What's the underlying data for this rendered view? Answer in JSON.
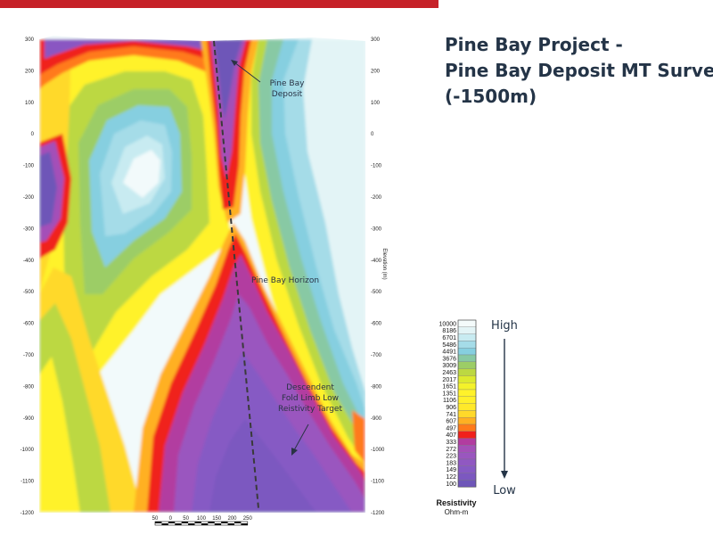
{
  "colors": {
    "brand_red": "#c62128",
    "title_navy": "#243447",
    "annotation": "#2a3345",
    "dashed_line": "#3a3a3a"
  },
  "title": {
    "line1": "Pine Bay Project -",
    "line2": "Pine Bay Deposit MT Survey",
    "line3": "(-1500m)"
  },
  "section": {
    "elevation_ticks": [
      "300",
      "200",
      "100",
      "0",
      "-100",
      "-200",
      "-300",
      "-400",
      "-500",
      "-600",
      "-700",
      "-800",
      "-900",
      "-1000",
      "-1100",
      "-1200"
    ],
    "right_axis_label": "Elevation (m)",
    "annotations": {
      "deposit_line1": "Pine Bay",
      "deposit_line2": "Deposit",
      "horizon": "Pine Bay Horizon",
      "target_line1": "Descendent",
      "target_line2": "Fold Limb Low",
      "target_line3": "Reistivity Target"
    }
  },
  "scale_bar": {
    "labels": [
      "50",
      "0",
      "50",
      "100",
      "150",
      "200",
      "250"
    ]
  },
  "legend": {
    "values": [
      "10000",
      "8186",
      "6701",
      "5486",
      "4491",
      "3676",
      "3009",
      "2463",
      "2017",
      "1651",
      "1351",
      "1106",
      "906",
      "741",
      "607",
      "497",
      "407",
      "333",
      "272",
      "223",
      "183",
      "149",
      "122",
      "100"
    ],
    "swatch_colors": [
      "#f4fbfb",
      "#e3f4f6",
      "#c8ebf1",
      "#a5dce8",
      "#86cfe0",
      "#88c9a4",
      "#9ccd66",
      "#bcd842",
      "#ddea2e",
      "#f4f22a",
      "#fff22a",
      "#fff02a",
      "#ffe92a",
      "#ffd92a",
      "#ffb022",
      "#ff7a1a",
      "#f0201c",
      "#b23ca0",
      "#a450b8",
      "#9a56bf",
      "#9058c2",
      "#865ac4",
      "#7c58c0",
      "#6e56b8"
    ],
    "high_label": "High",
    "low_label": "Low",
    "title": "Resistivity",
    "units": "Ohm-m"
  }
}
